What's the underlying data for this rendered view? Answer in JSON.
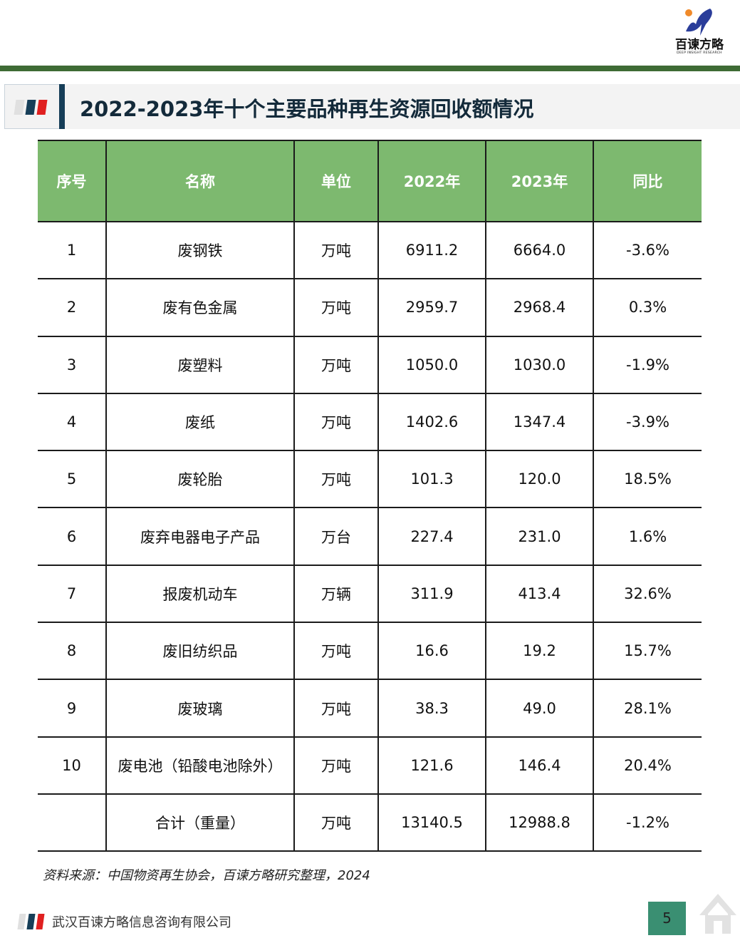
{
  "logo": {
    "name": "百谏方略",
    "tagline": "DEEP INSIGHT RESEARCH"
  },
  "title": "2022-2023年十个主要品种再生资源回收额情况",
  "colors": {
    "header_green": "#7db96f",
    "top_bar": "#3e6b35",
    "title_bar": "#163e58",
    "page_badge": "#3a8f72"
  },
  "table": {
    "headers": [
      "序号",
      "名称",
      "单位",
      "2022年",
      "2023年",
      "同比"
    ],
    "rows": [
      [
        "1",
        "废钢铁",
        "万吨",
        "6911.2",
        "6664.0",
        "-3.6%"
      ],
      [
        "2",
        "废有色金属",
        "万吨",
        "2959.7",
        "2968.4",
        "0.3%"
      ],
      [
        "3",
        "废塑料",
        "万吨",
        "1050.0",
        "1030.0",
        "-1.9%"
      ],
      [
        "4",
        "废纸",
        "万吨",
        "1402.6",
        "1347.4",
        "-3.9%"
      ],
      [
        "5",
        "废轮胎",
        "万吨",
        "101.3",
        "120.0",
        "18.5%"
      ],
      [
        "6",
        "废弃电器电子产品",
        "万台",
        "227.4",
        "231.0",
        "1.6%"
      ],
      [
        "7",
        "报废机动车",
        "万辆",
        "311.9",
        "413.4",
        "32.6%"
      ],
      [
        "8",
        "废旧纺织品",
        "万吨",
        "16.6",
        "19.2",
        "15.7%"
      ],
      [
        "9",
        "废玻璃",
        "万吨",
        "38.3",
        "49.0",
        "28.1%"
      ],
      [
        "10",
        "废电池（铅酸电池除外）",
        "万吨",
        "121.6",
        "146.4",
        "20.4%"
      ],
      [
        "",
        "合计（重量）",
        "万吨",
        "13140.5",
        "12988.8",
        "-1.2%"
      ]
    ]
  },
  "source": "资料来源：中国物资再生协会，百谏方略研究整理，2024",
  "footer": {
    "company": "武汉百谏方略信息咨询有限公司",
    "page": "5"
  }
}
